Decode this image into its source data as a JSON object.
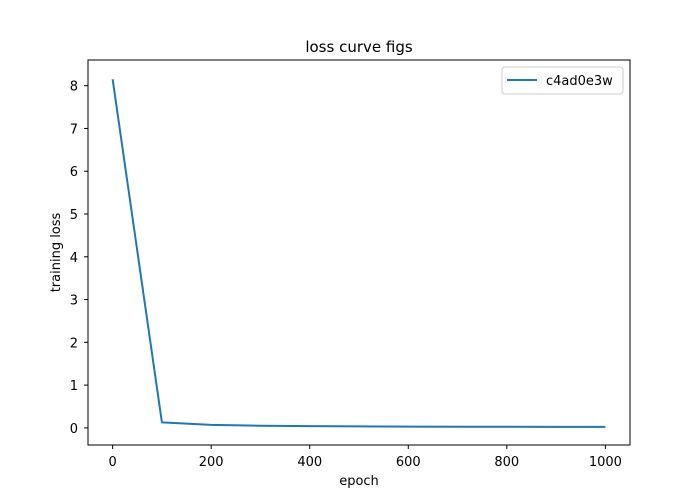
{
  "chart_data": {
    "type": "line",
    "title": "loss curve figs",
    "xlabel": "epoch",
    "ylabel": "training loss",
    "xlim": [
      -50,
      1050
    ],
    "ylim": [
      -0.4,
      8.6
    ],
    "xticks": [
      0,
      200,
      400,
      600,
      800,
      1000
    ],
    "yticks": [
      0,
      1,
      2,
      3,
      4,
      5,
      6,
      7,
      8
    ],
    "grid": false,
    "legend_position": "top-right",
    "series": [
      {
        "name": "c4ad0e3w",
        "color": "#1f77b4",
        "x": [
          0,
          100,
          200,
          300,
          400,
          500,
          600,
          700,
          800,
          900,
          1000
        ],
        "y": [
          8.15,
          0.13,
          0.07,
          0.05,
          0.04,
          0.035,
          0.03,
          0.028,
          0.026,
          0.025,
          0.024
        ]
      }
    ]
  }
}
